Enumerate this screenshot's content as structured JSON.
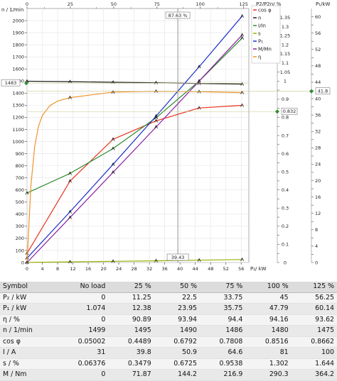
{
  "chart_data": {
    "type": "line",
    "x_axis": {
      "label": "P₂/ kW",
      "range": [
        0,
        58
      ],
      "ticks": [
        0,
        4,
        8,
        12,
        16,
        20,
        24,
        28,
        32,
        36,
        40,
        44,
        48,
        52,
        56
      ]
    },
    "top_axis": {
      "label": "P2/P2n/ %",
      "range": [
        0,
        128
      ],
      "ticks": [
        0,
        25,
        50,
        75,
        100,
        125
      ],
      "minor_ticks": [
        10,
        40,
        60,
        90,
        110
      ]
    },
    "left_axis": {
      "label": "n / 1/min",
      "range": [
        0,
        2100
      ],
      "ticks": [
        0,
        100,
        200,
        300,
        400,
        500,
        600,
        700,
        800,
        900,
        1000,
        1100,
        1200,
        1300,
        1400,
        1500,
        1600,
        1700,
        1800,
        1900,
        2000
      ]
    },
    "middle_axis": {
      "range": [
        0,
        1.4
      ],
      "ticks": [
        0,
        0.05,
        0.1,
        0.15,
        0.2,
        0.25,
        0.3,
        0.35,
        0.4,
        0.45,
        0.5,
        0.55,
        0.6,
        0.65,
        0.7,
        0.75,
        0.8,
        0.85,
        0.9,
        0.95,
        1,
        1.05,
        1.1,
        1.15,
        1.2,
        1.25,
        1.3,
        1.35
      ]
    },
    "right_axis": {
      "label": "P₁/kW",
      "range": [
        0,
        62
      ],
      "ticks": [
        0,
        2,
        4,
        6,
        8,
        10,
        12,
        14,
        16,
        18,
        20,
        22,
        24,
        26,
        28,
        30,
        32,
        34,
        36,
        38,
        40,
        42,
        44,
        46,
        48,
        50,
        52,
        54,
        56,
        58,
        60
      ]
    },
    "legend": [
      "cos φ",
      "n",
      "I/In",
      "s",
      "P₁",
      "M/Mn",
      "η"
    ],
    "legend_colors": [
      "#e8331f",
      "#222222",
      "#2f8c2f",
      "#9ab000",
      "#1d2fc8",
      "#8a1fa0",
      "#f0922b"
    ],
    "cursor": {
      "top_label": "87.63 %",
      "bottom_label": "39.43",
      "left_label": "1483",
      "right_label": "41.8",
      "mid_label": "0.832"
    },
    "series": [
      {
        "name": "cos φ",
        "axis": "middle",
        "x": [
          0,
          11.25,
          22.5,
          33.75,
          45,
          56.25
        ],
        "y": [
          0.05002,
          0.4489,
          0.6792,
          0.7808,
          0.8516,
          0.8662
        ]
      },
      {
        "name": "n",
        "axis": "left",
        "x": [
          0,
          11.25,
          22.5,
          33.75,
          45,
          56.25
        ],
        "y": [
          1499,
          1495,
          1490,
          1486,
          1480,
          1475
        ]
      },
      {
        "name": "I/In",
        "axis": "middle",
        "x": [
          0,
          11.25,
          22.5,
          33.75,
          45,
          56.25
        ],
        "y": [
          0.383,
          0.491,
          0.628,
          0.798,
          1.0,
          1.237
        ]
      },
      {
        "name": "s",
        "axis": "middle",
        "x": [
          0,
          11.25,
          22.5,
          33.75,
          45,
          56.25
        ],
        "y": [
          0.0006,
          0.0035,
          0.0067,
          0.0095,
          0.013,
          0.0164
        ]
      },
      {
        "name": "P₁",
        "axis": "right",
        "x": [
          0,
          11.25,
          22.5,
          33.75,
          45,
          56.25
        ],
        "y": [
          1.074,
          12.38,
          23.95,
          35.75,
          47.79,
          60.14
        ]
      },
      {
        "name": "M/Mn",
        "axis": "middle",
        "x": [
          0,
          11.25,
          22.5,
          33.75,
          45,
          56.25
        ],
        "y": [
          0,
          0.248,
          0.497,
          0.747,
          1.0,
          1.254
        ]
      },
      {
        "name": "η",
        "axis": "middle",
        "x": [
          0,
          1,
          2,
          3,
          4,
          6,
          8,
          11.25,
          22.5,
          33.75,
          45,
          56.25
        ],
        "y": [
          0,
          0.42,
          0.64,
          0.75,
          0.81,
          0.865,
          0.89,
          0.9089,
          0.9394,
          0.944,
          0.9416,
          0.9362
        ]
      }
    ]
  },
  "table": {
    "headers": [
      "Symbol",
      "No load",
      "25 %",
      "50 %",
      "75 %",
      "100 %",
      "125 %"
    ],
    "rows": [
      [
        "P₂ / kW",
        "0",
        "11.25",
        "22.5",
        "33.75",
        "45",
        "56.25"
      ],
      [
        "P₁ / kW",
        "1.074",
        "12.38",
        "23.95",
        "35.75",
        "47.79",
        "60.14"
      ],
      [
        "η / %",
        "0",
        "90.89",
        "93.94",
        "94.4",
        "94.16",
        "93.62"
      ],
      [
        "n / 1/min",
        "1499",
        "1495",
        "1490",
        "1486",
        "1480",
        "1475"
      ],
      [
        "cos φ",
        "0.05002",
        "0.4489",
        "0.6792",
        "0.7808",
        "0.8516",
        "0.8662"
      ],
      [
        "I / A",
        "31",
        "39.8",
        "50.9",
        "64.6",
        "81",
        "100"
      ],
      [
        "s / %",
        "0.06376",
        "0.3479",
        "0.6725",
        "0.9538",
        "1.302",
        "1.644"
      ],
      [
        "M / Nm",
        "0",
        "71.87",
        "144.2",
        "216.9",
        "290.3",
        "364.2"
      ]
    ]
  }
}
